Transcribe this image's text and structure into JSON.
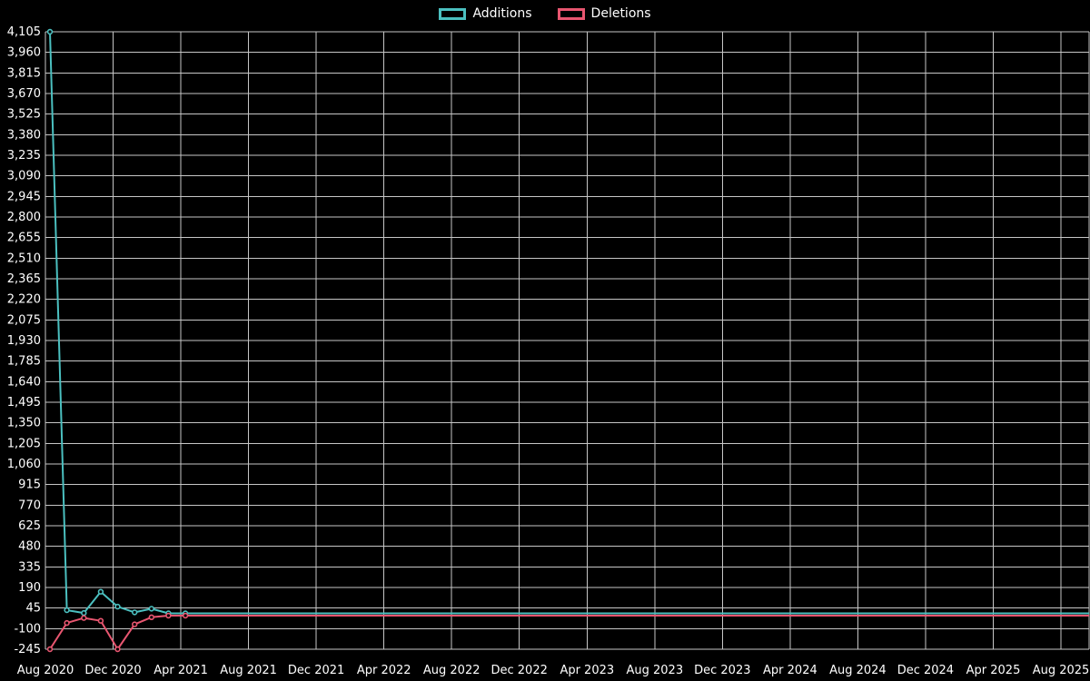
{
  "page": {
    "background": "#000000",
    "text_color": "#ffffff"
  },
  "legend": {
    "items": [
      {
        "label": "Additions",
        "color": "#4bc0c0"
      },
      {
        "label": "Deletions",
        "color": "#e85670"
      }
    ]
  },
  "chart_data": {
    "type": "line",
    "title": "",
    "xlabel": "",
    "ylabel": "",
    "grid": true,
    "grid_color": "#c6c6c6",
    "legend_position": "top",
    "ylim": [
      -245,
      4105
    ],
    "y_tick_step": 145,
    "y_ticks": [
      4105,
      3960,
      3815,
      3670,
      3525,
      3380,
      3235,
      3090,
      2945,
      2800,
      2655,
      2510,
      2365,
      2220,
      2075,
      1930,
      1785,
      1640,
      1495,
      1350,
      1205,
      1060,
      915,
      770,
      625,
      480,
      335,
      190,
      45,
      -100,
      -245
    ],
    "y_tick_labels": [
      "4,105",
      "3,960",
      "3,815",
      "3,670",
      "3,525",
      "3,380",
      "3,235",
      "3,090",
      "2,945",
      "2,800",
      "2,655",
      "2,510",
      "2,365",
      "2,220",
      "2,075",
      "1,930",
      "1,785",
      "1,640",
      "1,495",
      "1,350",
      "1,205",
      "1,060",
      "915",
      "770",
      "625",
      "480",
      "335",
      "190",
      "45",
      "-100",
      "-245"
    ],
    "x_tick_labels": [
      "Aug 2020",
      "Dec 2020",
      "Apr 2021",
      "Aug 2021",
      "Dec 2021",
      "Apr 2022",
      "Aug 2022",
      "Dec 2022",
      "Apr 2023",
      "Aug 2023",
      "Dec 2023",
      "Apr 2024",
      "Aug 2024",
      "Dec 2024",
      "Apr 2025",
      "Aug 2025"
    ],
    "x_start_month": "Aug 2020",
    "x_step_months": 1,
    "x_tick_interval_months": 4,
    "series": [
      {
        "name": "Additions",
        "color": "#4bc0c0",
        "values": [
          4105,
          30,
          10,
          160,
          55,
          15,
          40,
          8,
          8,
          8,
          8,
          8,
          8,
          8,
          8,
          8,
          8,
          8,
          8,
          8,
          8,
          8,
          8,
          8,
          8,
          8,
          8,
          8,
          8,
          8,
          8,
          8,
          8,
          8,
          8,
          8,
          8,
          8,
          8,
          8,
          8,
          8,
          8,
          8,
          8,
          8,
          8,
          8,
          8,
          8,
          8,
          8,
          8,
          8,
          8,
          8,
          8,
          8,
          8,
          8,
          8
        ]
      },
      {
        "name": "Deletions",
        "color": "#e85670",
        "values": [
          -245,
          -60,
          -25,
          -45,
          -245,
          -70,
          -20,
          -8,
          -8,
          -8,
          -8,
          -8,
          -8,
          -8,
          -8,
          -8,
          -8,
          -8,
          -8,
          -8,
          -8,
          -8,
          -8,
          -8,
          -8,
          -8,
          -8,
          -8,
          -8,
          -8,
          -8,
          -8,
          -8,
          -8,
          -8,
          -8,
          -8,
          -8,
          -8,
          -8,
          -8,
          -8,
          -8,
          -8,
          -8,
          -8,
          -8,
          -8,
          -8,
          -8,
          -8,
          -8,
          -8,
          -8,
          -8,
          -8,
          -8,
          -8,
          -8,
          -8,
          -8
        ]
      }
    ]
  }
}
